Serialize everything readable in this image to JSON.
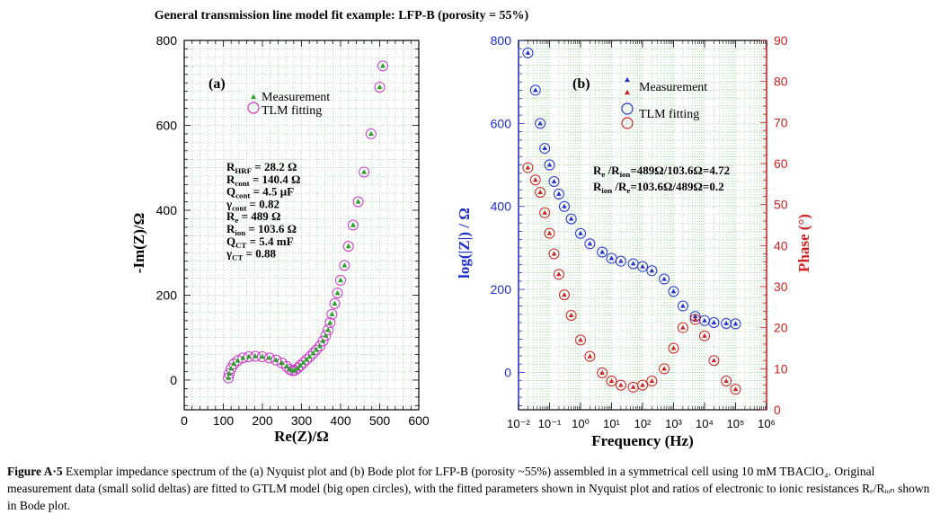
{
  "figure": {
    "title": "General transmission line model fit example:  LFP-B (porosity = 55%)",
    "caption_label": "Figure A·5",
    "caption_text": " Exemplar impedance spectrum of the (a) Nyquist plot and (b) Bode plot for LFP-B (porosity ~55%) assembled in a symmetrical cell using 10 mM TBAClO₄. Original measurement data (small solid deltas) are fitted to GTLM model (big open circles), with the fitted parameters shown in Nyquist plot and ratios of electronic to ionic resistances Rₑ/Rᵢₒₙ shown in Bode plot."
  },
  "chart_data": [
    {
      "type": "scatter",
      "panel_label": "(a)",
      "xlabel": "Re(Z)/Ω",
      "ylabel": "-Im(Z)/Ω",
      "xlim": [
        0,
        600
      ],
      "ylim": [
        -70,
        800
      ],
      "xticks": [
        0,
        100,
        200,
        300,
        400,
        500,
        600
      ],
      "yticks": [
        0,
        200,
        400,
        600,
        800
      ],
      "grid": true,
      "legend_position": "top-left",
      "series": [
        {
          "name": "Measurement",
          "marker": "triangle-filled",
          "color": "#2e9e2e",
          "x": [
            113,
            115,
            120,
            127,
            137,
            150,
            165,
            182,
            200,
            218,
            235,
            250,
            262,
            270,
            277,
            283,
            290,
            297,
            305,
            313,
            321,
            330,
            338,
            347,
            355,
            362,
            368,
            373,
            378,
            385,
            392,
            400,
            410,
            420,
            432,
            445,
            460,
            478,
            500,
            508
          ],
          "y": [
            5,
            15,
            27,
            38,
            46,
            52,
            55,
            56,
            55,
            52,
            47,
            40,
            32,
            25,
            22,
            23,
            28,
            34,
            41,
            48,
            55,
            63,
            71,
            80,
            92,
            105,
            118,
            135,
            155,
            180,
            205,
            235,
            270,
            315,
            365,
            420,
            490,
            580,
            690,
            740
          ]
        },
        {
          "name": "TLM fitting",
          "marker": "circle-open",
          "color": "#cc33cc",
          "x": [
            113,
            115,
            120,
            127,
            137,
            150,
            165,
            182,
            200,
            218,
            235,
            250,
            262,
            270,
            277,
            283,
            290,
            297,
            305,
            313,
            321,
            330,
            338,
            347,
            355,
            362,
            368,
            373,
            378,
            385,
            392,
            400,
            410,
            420,
            432,
            445,
            460,
            478,
            500,
            508
          ],
          "y": [
            5,
            15,
            27,
            38,
            46,
            52,
            55,
            56,
            55,
            52,
            47,
            40,
            32,
            25,
            22,
            23,
            28,
            34,
            41,
            48,
            55,
            63,
            71,
            80,
            92,
            105,
            118,
            135,
            155,
            180,
            205,
            235,
            270,
            315,
            365,
            420,
            490,
            580,
            690,
            740
          ]
        }
      ],
      "annotations": [
        [
          "R",
          "HRF",
          " = 28.2 Ω"
        ],
        [
          "R",
          "cont",
          " = 140.4 Ω"
        ],
        [
          "Q",
          "cont",
          " = 4.5 μF"
        ],
        [
          "γ",
          "cont",
          " = 0.82"
        ],
        [
          "R",
          "e",
          " = 489 Ω"
        ],
        [
          "R",
          "ion",
          " = 103.6 Ω"
        ],
        [
          "Q",
          "CT",
          " = 5.4 mF"
        ],
        [
          "γ",
          "CT",
          " = 0.88"
        ]
      ]
    },
    {
      "type": "scatter",
      "panel_label": "(b)",
      "xlabel": "Frequency (Hz)",
      "ylabel": "log(|Z|) / Ω",
      "y2label": "Phase (°)",
      "xscale": "log",
      "xlim": [
        0.01,
        1000000
      ],
      "ylim": [
        -90,
        800
      ],
      "y2lim": [
        0,
        90
      ],
      "xticks": [
        "10⁻²",
        "10⁻¹",
        "10⁰",
        "10¹",
        "10²",
        "10³",
        "10⁴",
        "10⁵",
        "10⁶"
      ],
      "yticks": [
        0,
        200,
        400,
        600,
        800
      ],
      "y2ticks": [
        0,
        10,
        20,
        30,
        40,
        50,
        60,
        70,
        80,
        90
      ],
      "grid": true,
      "legend_position": "top-right",
      "legend": [
        {
          "name": "Measurement",
          "markers": [
            "triangle-filled-blue",
            "triangle-filled-red"
          ]
        },
        {
          "name": "TLM fitting",
          "markers": [
            "circle-open-blue",
            "circle-open-red"
          ]
        }
      ],
      "series": [
        {
          "name": "|Z| measurement",
          "axis": "left",
          "color": "#2233cc",
          "x": [
            0.02,
            0.035,
            0.05,
            0.07,
            0.1,
            0.14,
            0.2,
            0.3,
            0.5,
            1,
            2,
            5,
            10,
            20,
            50,
            100,
            200,
            500,
            1000,
            2000,
            5000,
            10000,
            20000,
            50000,
            100000
          ],
          "y": [
            770,
            680,
            600,
            540,
            500,
            460,
            430,
            400,
            370,
            335,
            310,
            290,
            275,
            268,
            262,
            255,
            245,
            225,
            195,
            160,
            135,
            125,
            120,
            118,
            117
          ]
        },
        {
          "name": "Phase measurement",
          "axis": "right",
          "color": "#cc2222",
          "x": [
            0.02,
            0.035,
            0.05,
            0.07,
            0.1,
            0.14,
            0.2,
            0.3,
            0.5,
            1,
            2,
            5,
            10,
            20,
            50,
            100,
            200,
            500,
            1000,
            2000,
            5000,
            10000,
            20000,
            50000,
            100000
          ],
          "y": [
            59,
            56,
            53,
            48,
            43,
            38,
            33,
            28,
            23,
            17,
            13,
            9,
            7,
            6,
            5.5,
            6,
            7,
            10,
            15,
            20,
            22,
            18,
            12,
            7,
            5
          ]
        }
      ],
      "annotations": [
        [
          "R",
          "e",
          " /R",
          "ion",
          "=489Ω/103.6Ω=4.72"
        ],
        [
          "R",
          "ion",
          " /R",
          "e",
          "=103.6Ω/489Ω=0.2"
        ]
      ]
    }
  ]
}
